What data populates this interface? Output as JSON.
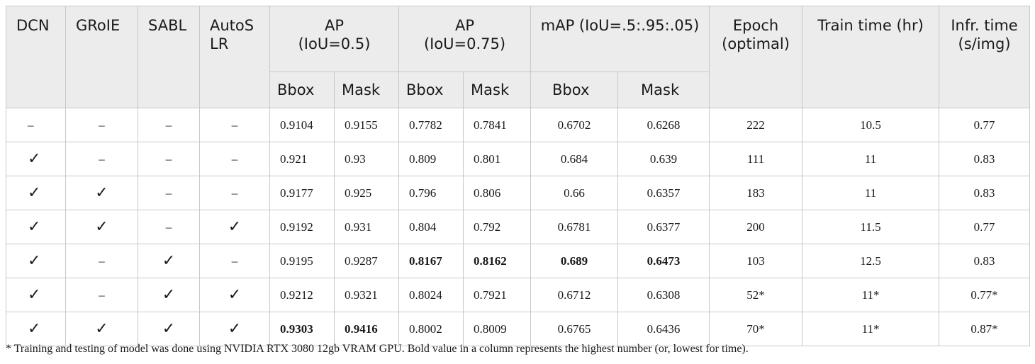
{
  "headers": {
    "dcn": "DCN",
    "groie": "GRoIE",
    "sabl": "SABL",
    "autoslr_1": "AutoS",
    "autoslr_2": "LR",
    "ap50_1": "AP",
    "ap50_2": "(IoU=0.5)",
    "ap75_1": "AP",
    "ap75_2": "(IoU=0.75)",
    "map": "mAP (IoU=.5:.95:.05)",
    "epoch_1": "Epoch",
    "epoch_2": "(optimal)",
    "train_time": "Train time (hr)",
    "infr_1": "Infr. time",
    "infr_2": "(s/img)",
    "bbox": "Bbox",
    "mask": "Mask"
  },
  "rows": [
    {
      "dcn": "–",
      "groie": "–",
      "sabl": "–",
      "autoslr": "–",
      "ap50_bbox": "0.9104",
      "ap50_mask": "0.9155",
      "ap75_bbox": "0.7782",
      "ap75_mask": "0.7841",
      "map_bbox": "0.6702",
      "map_mask": "0.6268",
      "epoch": "222",
      "train": "10.5",
      "infr": "0.77"
    },
    {
      "dcn": "✓",
      "groie": "–",
      "sabl": "–",
      "autoslr": "–",
      "ap50_bbox": "0.921",
      "ap50_mask": "0.93",
      "ap75_bbox": "0.809",
      "ap75_mask": "0.801",
      "map_bbox": "0.684",
      "map_mask": "0.639",
      "epoch": "111",
      "train": "11",
      "infr": "0.83"
    },
    {
      "dcn": "✓",
      "groie": "✓",
      "sabl": "–",
      "autoslr": "–",
      "ap50_bbox": "0.9177",
      "ap50_mask": "0.925",
      "ap75_bbox": "0.796",
      "ap75_mask": "0.806",
      "map_bbox": "0.66",
      "map_mask": "0.6357",
      "epoch": "183",
      "train": "11",
      "infr": "0.83"
    },
    {
      "dcn": "✓",
      "groie": "✓",
      "sabl": "–",
      "autoslr": "✓",
      "ap50_bbox": "0.9192",
      "ap50_mask": "0.931",
      "ap75_bbox": "0.804",
      "ap75_mask": "0.792",
      "map_bbox": "0.6781",
      "map_mask": "0.6377",
      "epoch": "200",
      "train": "11.5",
      "infr": "0.77"
    },
    {
      "dcn": "✓",
      "groie": "–",
      "sabl": "✓",
      "autoslr": "–",
      "ap50_bbox": "0.9195",
      "ap50_mask": "0.9287",
      "ap75_bbox": "0.8167",
      "ap75_mask": "0.8162",
      "map_bbox": "0.689",
      "map_mask": "0.6473",
      "epoch": "103",
      "train": "12.5",
      "infr": "0.83"
    },
    {
      "dcn": "✓",
      "groie": "–",
      "sabl": "✓",
      "autoslr": "✓",
      "ap50_bbox": "0.9212",
      "ap50_mask": "0.9321",
      "ap75_bbox": "0.8024",
      "ap75_mask": "0.7921",
      "map_bbox": "0.6712",
      "map_mask": "0.6308",
      "epoch": "52*",
      "train": "11*",
      "infr": "0.77*"
    },
    {
      "dcn": "✓",
      "groie": "✓",
      "sabl": "✓",
      "autoslr": "✓",
      "ap50_bbox": "0.9303",
      "ap50_mask": "0.9416",
      "ap75_bbox": "0.8002",
      "ap75_mask": "0.8009",
      "map_bbox": "0.6765",
      "map_mask": "0.6436",
      "epoch": "70*",
      "train": "11*",
      "infr": "0.87*"
    }
  ],
  "bold_cells": [
    "4.ap75_bbox",
    "4.ap75_mask",
    "4.map_bbox",
    "4.map_mask",
    "6.ap50_bbox",
    "6.ap50_mask"
  ],
  "footnote": "* Training and testing of model was done using NVIDIA RTX 3080 12gb VRAM GPU. Bold value in a column represents the highest number (or, lowest for time)."
}
